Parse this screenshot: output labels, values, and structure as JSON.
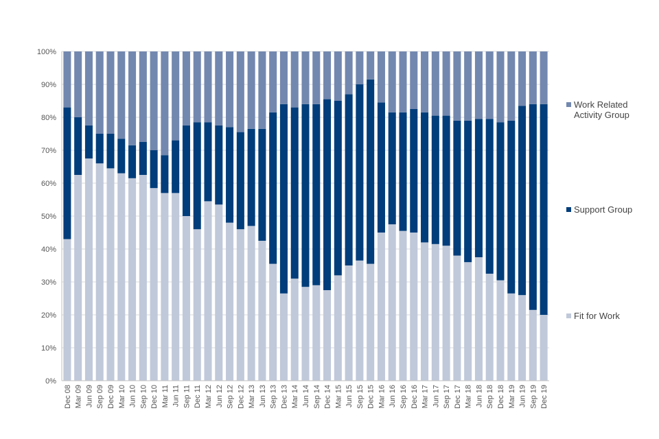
{
  "chart_data": {
    "type": "bar",
    "stacked": true,
    "percent_stacked": true,
    "categories": [
      "Dec 08",
      "Mar 09",
      "Jun 09",
      "Sep 09",
      "Dec 09",
      "Mar 10",
      "Jun 10",
      "Sep 10",
      "Dec 10",
      "Mar 11",
      "Jun 11",
      "Sep 11",
      "Dec 11",
      "Mar 12",
      "Jun 12",
      "Sep 12",
      "Dec 12",
      "Mar 13",
      "Jun 13",
      "Sep 13",
      "Dec 13",
      "Mar 14",
      "Jun 14",
      "Sep 14",
      "Dec 14",
      "Mar 15",
      "Jun 15",
      "Sep 15",
      "Dec 15",
      "Mar 16",
      "Jun 16",
      "Sep 16",
      "Dec 16",
      "Mar 17",
      "Jun 17",
      "Sep 17",
      "Dec 17",
      "Mar 18",
      "Jun 18",
      "Sep 18",
      "Dec 18",
      "Mar 19",
      "Jun 19",
      "Sep 19",
      "Dec 19"
    ],
    "x_tick_labels": [
      "Dec 08",
      "Mar 09",
      "Jun 09",
      "Sep 09",
      "Dec 09",
      "Mar 10",
      "Jun 10",
      "Sep 10",
      "Dec 10",
      "Mar 11",
      "Jun 11",
      "Sep 11",
      "Dec 11",
      "Mar 12",
      "Jun 12",
      "Sep 12",
      "Dec 12",
      "Mar 13",
      "Jun 13",
      "Sep 13",
      "Dec 13",
      "Mar 14",
      "Jun 14",
      "Sep 14",
      "Dec 14",
      "Mar 15",
      "Jun 15",
      "Sep 15",
      "Dec 15",
      "Mar 16",
      "Jun 16",
      "Sep 16",
      "Dec 16",
      "Mar 17",
      "Jun 17",
      "Sep 17",
      "Dec 17",
      "Mar 18",
      "Jun 18",
      "Sep 18",
      "Dec 18",
      "Mar 19",
      "Jun 19",
      "Sep 19",
      "Dec 19"
    ],
    "y_tick_labels": [
      "0%",
      "10%",
      "20%",
      "30%",
      "40%",
      "50%",
      "60%",
      "70%",
      "80%",
      "90%",
      "100%"
    ],
    "ylim": [
      0,
      100
    ],
    "grid": true,
    "legend_position": "right",
    "series": [
      {
        "name": "Fit for Work",
        "color": "#c0c9da",
        "values": [
          43,
          62.5,
          67.5,
          66,
          64.5,
          63,
          61.5,
          62.5,
          58.5,
          57,
          57,
          50,
          46,
          54.5,
          53.5,
          48,
          46,
          47,
          42.5,
          35.5,
          26.5,
          31,
          28.5,
          29,
          27.5,
          32,
          35,
          36.5,
          35.5,
          45,
          47.5,
          45.5,
          45,
          42,
          41.5,
          41,
          38,
          36,
          37.5,
          32.5,
          30.5,
          26.5,
          26,
          21.5,
          20
        ]
      },
      {
        "name": "Support Group",
        "color": "#003d7a",
        "values": [
          40,
          17.5,
          10,
          9,
          10.5,
          10.5,
          10,
          10,
          11.5,
          11.5,
          16,
          27.5,
          32.5,
          24,
          24,
          29,
          29.5,
          29.5,
          34,
          46,
          57.5,
          52,
          55.5,
          55,
          58,
          53,
          52,
          53.5,
          56,
          39.5,
          34,
          36,
          37.5,
          39.5,
          39,
          39.5,
          41,
          43,
          42,
          47,
          48,
          52.5,
          57.5,
          62.5,
          64
        ]
      },
      {
        "name": "Work Related Activity Group",
        "color": "#7388af",
        "values": [
          17,
          20,
          22.5,
          25,
          25,
          26.5,
          28.5,
          27.5,
          30,
          31.5,
          27,
          22.5,
          21.5,
          21.5,
          22.5,
          23,
          24.5,
          23.5,
          23.5,
          18.5,
          16,
          17,
          16,
          16,
          14.5,
          15,
          13,
          10,
          8.5,
          15.5,
          18.5,
          18.5,
          17.5,
          18.5,
          19.5,
          19.5,
          21,
          21,
          20.5,
          20.5,
          21.5,
          21,
          16.5,
          16,
          16
        ]
      }
    ],
    "legend": [
      {
        "lines": [
          "Work Related",
          "Activity Group"
        ],
        "color": "#7388af"
      },
      {
        "lines": [
          "Support Group"
        ],
        "color": "#003d7a"
      },
      {
        "lines": [
          "Fit for Work"
        ],
        "color": "#c0c9da"
      }
    ]
  }
}
